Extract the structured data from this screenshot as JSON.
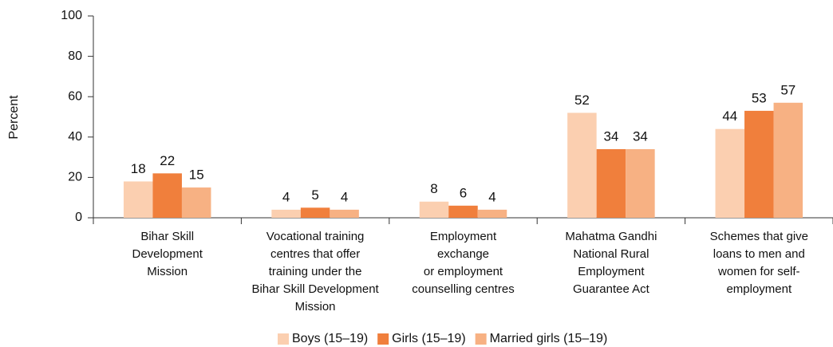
{
  "chart_data": {
    "type": "bar",
    "y_label": "Percent",
    "categories": [
      "Bihar Skill\nDevelopment\nMission",
      "Vocational training\ncentres that offer\ntraining under the\nBihar Skill Development\nMission",
      "Employment\nexchange\nor employment\ncounselling centres",
      "Mahatma Gandhi\nNational Rural\nEmployment\nGuarantee Act",
      "Schemes that give\nloans to men and\nwomen for self-\nemployment"
    ],
    "series": [
      {
        "name": "Boys (15–19)",
        "color": "#fbcfb0",
        "values": [
          18,
          4,
          8,
          52,
          44
        ]
      },
      {
        "name": "Girls (15–19)",
        "color": "#f07f3c",
        "values": [
          22,
          5,
          6,
          34,
          53
        ]
      },
      {
        "name": "Married girls (15–19)",
        "color": "#f7b183",
        "values": [
          15,
          4,
          4,
          34,
          57
        ]
      }
    ],
    "ylim": [
      0,
      100
    ],
    "yticks": [
      0,
      20,
      40,
      60,
      80,
      100
    ],
    "legend": "bottom"
  }
}
